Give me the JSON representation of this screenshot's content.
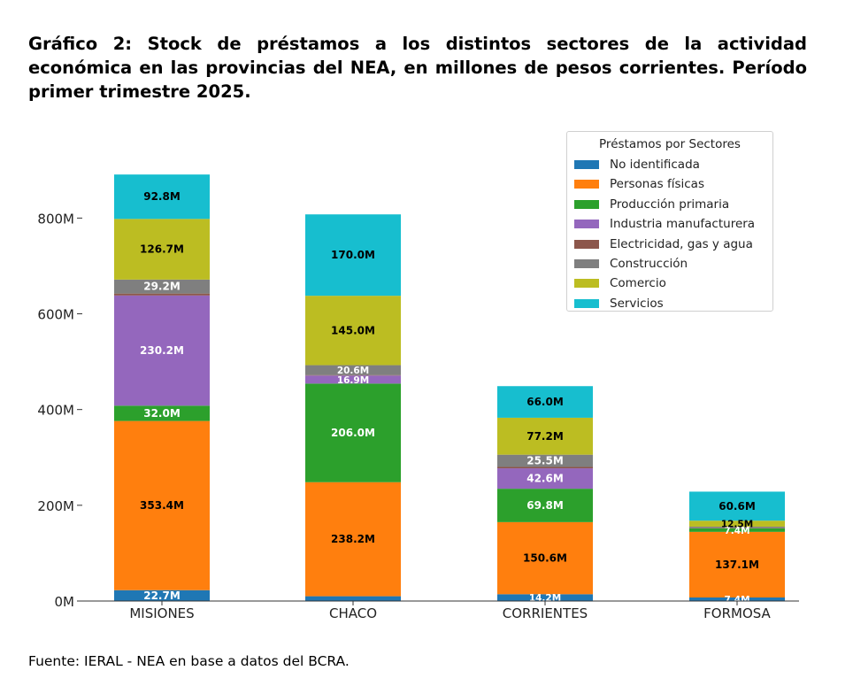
{
  "title": "Gráfico 2: Stock de préstamos a los distintos sectores de la actividad económica en las provincias del NEA, en millones de pesos corrientes. Período primer trimestre 2025.",
  "source": "Fuente: IERAL - NEA en base a datos del BCRA.",
  "chart_data": {
    "type": "bar",
    "stacked": true,
    "categories": [
      "MISIONES",
      "CHACO",
      "CORRIENTES",
      "FORMOSA"
    ],
    "ylim": [
      0,
      900
    ],
    "yticks": [
      0,
      200,
      400,
      600,
      800
    ],
    "ytick_labels": [
      "0M",
      "200M",
      "400M",
      "600M",
      "800M"
    ],
    "legend_title": "Préstamos por Sectores",
    "legend_position": "top-right",
    "grid": false,
    "series": [
      {
        "name": "No identificada",
        "color": "#1f77b4",
        "values": [
          22.7,
          10.0,
          14.2,
          7.4
        ],
        "labels": [
          "22.7M",
          "",
          "14.2M",
          "7.4M"
        ]
      },
      {
        "name": "Personas físicas",
        "color": "#ff7f0e",
        "values": [
          353.4,
          238.2,
          150.6,
          137.1
        ],
        "labels": [
          "353.4M",
          "238.2M",
          "150.6M",
          "137.1M"
        ]
      },
      {
        "name": "Producción primaria",
        "color": "#2ca02c",
        "values": [
          32.0,
          206.0,
          69.8,
          7.4
        ],
        "labels": [
          "32.0M",
          "206.0M",
          "69.8M",
          "7.4M"
        ]
      },
      {
        "name": "Industria manufacturera",
        "color": "#9467bd",
        "values": [
          230.2,
          16.9,
          42.6,
          0
        ],
        "labels": [
          "230.2M",
          "16.9M",
          "42.6M",
          ""
        ]
      },
      {
        "name": "Electricidad, gas y agua",
        "color": "#8c564b",
        "values": [
          4.0,
          1.0,
          3.0,
          1.0
        ],
        "labels": [
          "",
          "",
          "",
          ""
        ]
      },
      {
        "name": "Construcción",
        "color": "#7f7f7f",
        "values": [
          29.2,
          20.6,
          25.5,
          2.5
        ],
        "labels": [
          "29.2M",
          "20.6M",
          "25.5M",
          ""
        ]
      },
      {
        "name": "Comercio",
        "color": "#bcbd22",
        "values": [
          126.7,
          145.0,
          77.2,
          12.5
        ],
        "labels": [
          "126.7M",
          "145.0M",
          "77.2M",
          "12.5M"
        ]
      },
      {
        "name": "Servicios",
        "color": "#17becf",
        "values": [
          92.8,
          170.0,
          66.0,
          60.6
        ],
        "labels": [
          "92.8M",
          "170.0M",
          "66.0M",
          "60.6M"
        ]
      }
    ]
  }
}
